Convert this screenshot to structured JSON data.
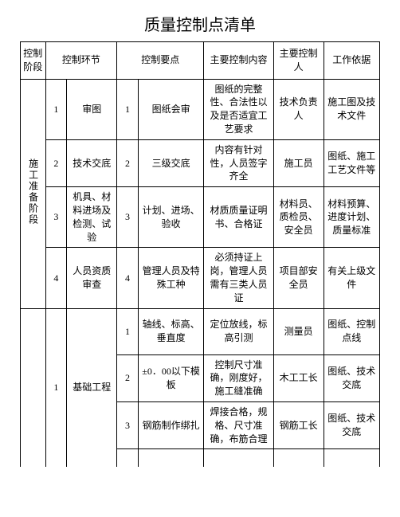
{
  "title": "质量控制点清单",
  "headers": {
    "stage": "控制阶段",
    "link": "控制环节",
    "point": "控制要点",
    "content": "主要控制内容",
    "person": "主要控制人",
    "basis": "工作依据"
  },
  "stage1": {
    "name": "施工准备阶段",
    "rows": [
      {
        "n1": "1",
        "link": "审图",
        "n2": "1",
        "point": "图纸会审",
        "content": "图纸的完整性、合法性以及是否适宜工艺要求",
        "person": "技术负责人",
        "basis": "施工图及技术文件"
      },
      {
        "n1": "2",
        "link": "技术交底",
        "n2": "2",
        "point": "三级交底",
        "content": "内容有针对性，人员签字齐全",
        "person": "施工员",
        "basis": "图纸、施工工艺文件等"
      },
      {
        "n1": "3",
        "link": "机具、材料进场及检测、试验",
        "n2": "3",
        "point": "计划、进场、验收",
        "content": "材质质量证明书、合格证",
        "person": "材料员、质检员、安全员",
        "basis": "材料预算、进度计划、质量标准"
      },
      {
        "n1": "4",
        "link": "人员资质审查",
        "n2": "4",
        "point": "管理人员及特殊工种",
        "content": "必须持证上岗，管理人员需有三类人员证",
        "person": "项目部安全员",
        "basis": "有关上级文件"
      }
    ]
  },
  "stage2": {
    "link_n1": "1",
    "link_name": "基础工程",
    "rows": [
      {
        "n2": "1",
        "point": "轴线、标高、垂直度",
        "content": "定位放线，标高引测",
        "person": "测量员",
        "basis": "图纸、控制点线"
      },
      {
        "n2": "2",
        "point": "±0．00以下模板",
        "content": "控制尺寸准确，刚度好，施工缝准确",
        "person": "木工工长",
        "basis": "图纸、技术交底"
      },
      {
        "n2": "3",
        "point": "钢筋制作绑扎",
        "content": "焊接合格，规格、尺寸准确，布筋合理",
        "person": "钢筋工长",
        "basis": "图纸、技术交底"
      }
    ]
  }
}
